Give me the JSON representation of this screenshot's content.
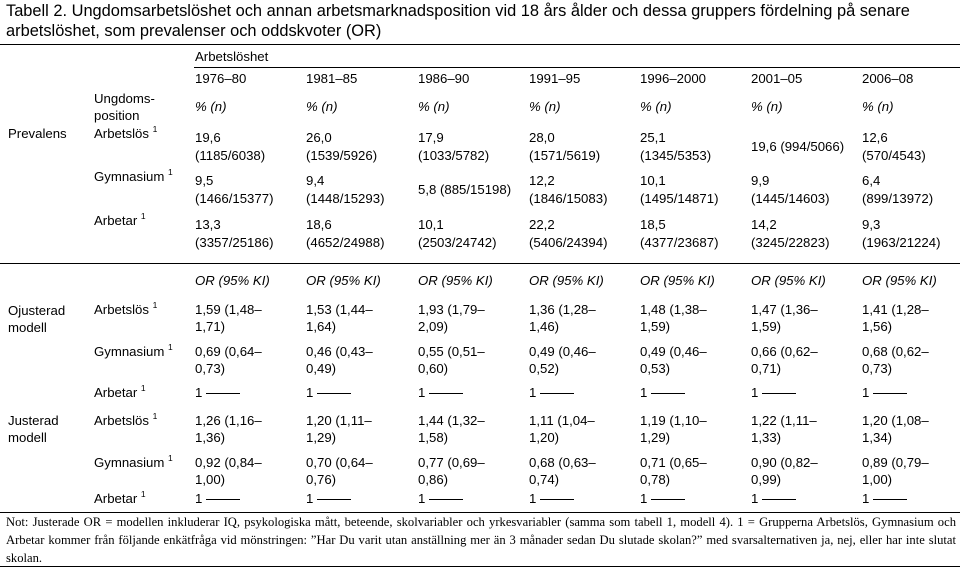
{
  "title": "Tabell 2. Ungdomsarbetslöshet och annan arbetsmarknadsposition vid 18 års ålder och dessa gruppers fördelning på senare arbetslöshet, som prevalenser och oddskvoter (OR)",
  "header": {
    "group_label": "Arbetslöshet",
    "position_label_line1": "Ungdoms-",
    "position_label_line2": "position",
    "periods": [
      "1976–80",
      "1981–85",
      "1986–90",
      "1991–95",
      "1996–2000",
      "2001–05",
      "2006–08"
    ],
    "prevalence_unit": "% (n)",
    "or_unit": "OR  (95% KI)"
  },
  "prevalence": {
    "section_label": "Prevalens",
    "rows": [
      {
        "label": "Arbetslös",
        "sup": "1",
        "cells": [
          {
            "v": "19,6",
            "n": "(1185/6038)"
          },
          {
            "v": "26,0",
            "n": "(1539/5926)"
          },
          {
            "v": "17,9",
            "n": "(1033/5782)"
          },
          {
            "v": "28,0",
            "n": "(1571/5619)"
          },
          {
            "v": "25,1",
            "n": "(1345/5353)"
          },
          {
            "v": "19,6 (994/5066)",
            "n": ""
          },
          {
            "v": "12,6",
            "n": "(570/4543)"
          }
        ]
      },
      {
        "label": "Gymnasium",
        "sup": "1",
        "cells": [
          {
            "v": "9,5",
            "n": "(1466/15377)"
          },
          {
            "v": "9,4",
            "n": "(1448/15293)"
          },
          {
            "v": "5,8 (885/15198)",
            "n": ""
          },
          {
            "v": "12,2",
            "n": "(1846/15083)"
          },
          {
            "v": "10,1",
            "n": "(1495/14871)"
          },
          {
            "v": "9,9",
            "n": "(1445/14603)"
          },
          {
            "v": "6,4",
            "n": "(899/13972)"
          }
        ]
      },
      {
        "label": "Arbetar",
        "sup": "1",
        "cells": [
          {
            "v": "13,3",
            "n": "(3357/25186)"
          },
          {
            "v": "18,6",
            "n": "(4652/24988)"
          },
          {
            "v": "10,1",
            "n": "(2503/24742)"
          },
          {
            "v": "22,2",
            "n": "(5406/24394)"
          },
          {
            "v": "18,5",
            "n": "(4377/23687)"
          },
          {
            "v": "14,2",
            "n": "(3245/22823)"
          },
          {
            "v": "9,3",
            "n": "(1963/21224)"
          }
        ]
      }
    ]
  },
  "unadjusted": {
    "label_line1": "Ojusterad",
    "label_line2": "modell",
    "rows": [
      {
        "label": "Arbetslös",
        "sup": "1",
        "cells": [
          [
            "1,59 (1,48–",
            "1,71)"
          ],
          [
            "1,53 (1,44–",
            "1,64)"
          ],
          [
            "1,93 (1,79–",
            "2,09)"
          ],
          [
            "1,36 (1,28–",
            "1,46)"
          ],
          [
            "1,48 (1,38–",
            "1,59)"
          ],
          [
            "1,47 (1,36–",
            "1,59)"
          ],
          [
            "1,41 (1,28–",
            "1,56)"
          ]
        ]
      },
      {
        "label": "Gymnasium",
        "sup": "1",
        "cells": [
          [
            "0,69 (0,64–",
            "0,73)"
          ],
          [
            "0,46 (0,43–",
            "0,49)"
          ],
          [
            "0,55 (0,51–",
            "0,60)"
          ],
          [
            "0,49 (0,46–",
            "0,52)"
          ],
          [
            "0,49 (0,46–",
            "0,53)"
          ],
          [
            "0,66 (0,62–",
            "0,71)"
          ],
          [
            "0,68 (0,62–",
            "0,73)"
          ]
        ]
      },
      {
        "label": "Arbetar",
        "sup": "1",
        "ref_values": [
          "1",
          "1",
          "1",
          "1",
          "1",
          "1",
          "1"
        ]
      }
    ]
  },
  "adjusted": {
    "label_line1": "Justerad",
    "label_line2": "modell",
    "rows": [
      {
        "label": "Arbetslös",
        "sup": "1",
        "cells": [
          [
            "1,26 (1,16–",
            "1,36)"
          ],
          [
            "1,20 (1,11–",
            "1,29)"
          ],
          [
            "1,44 (1,32–",
            "1,58)"
          ],
          [
            "1,11 (1,04–",
            "1,20)"
          ],
          [
            "1,19 (1,10–",
            "1,29)"
          ],
          [
            "1,22 (1,11–",
            "1,33)"
          ],
          [
            "1,20 (1,08–",
            "1,34)"
          ]
        ]
      },
      {
        "label": "Gymnasium",
        "sup": "1",
        "cells": [
          [
            "0,92 (0,84–",
            "1,00)"
          ],
          [
            "0,70 (0,64–",
            "0,76)"
          ],
          [
            "0,77 (0,69–",
            "0,86)"
          ],
          [
            "0,68 (0,63–",
            "0,74)"
          ],
          [
            "0,71 (0,65–",
            "0,78)"
          ],
          [
            "0,90 (0,82–",
            "0,99)"
          ],
          [
            "0,89 (0,79–",
            "1,00)"
          ]
        ]
      },
      {
        "label": "Arbetar",
        "sup": "1",
        "ref_values": [
          "1",
          "1",
          "1",
          "1",
          "1",
          "1",
          "1"
        ]
      }
    ]
  },
  "note": "Not: Justerade OR = modellen inkluderar IQ, psykologiska mått, beteende, skolvariabler och yrkesvariabler (samma som tabell 1, modell 4). 1 = Grupperna Arbetslös, Gymnasium och Arbetar kommer från följande enkätfråga vid mönstringen: ”Har Du varit utan anställning mer än 3 månader sedan Du slutade skolan?” med svarsalternativen ja, nej, eller har inte slutat skolan."
}
